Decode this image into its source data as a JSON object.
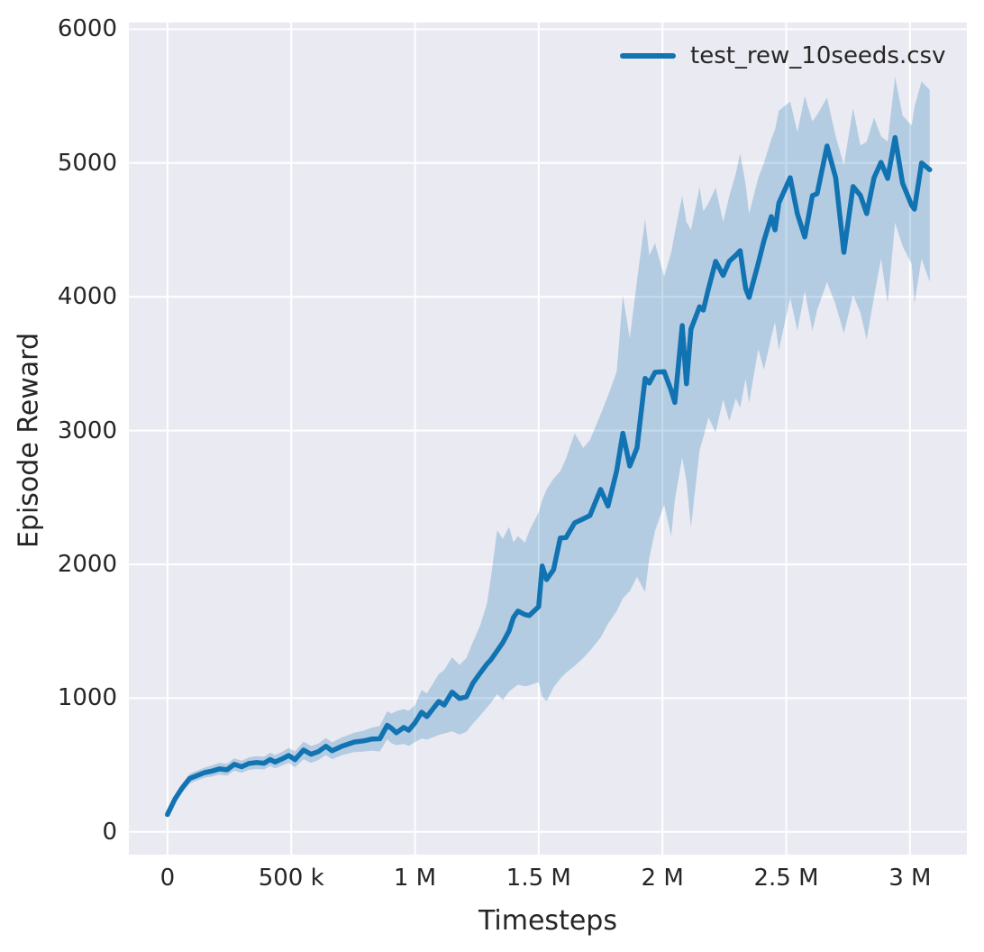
{
  "chart_data": {
    "type": "line",
    "title": "",
    "xlabel": "Timesteps",
    "ylabel": "Episode Reward",
    "grid": true,
    "xlim": [
      -156000,
      3230000
    ],
    "ylim": [
      -170,
      6050
    ],
    "x_ticks": [
      {
        "value": 0,
        "label": "0"
      },
      {
        "value": 500000,
        "label": "500 k"
      },
      {
        "value": 1000000,
        "label": "1 M"
      },
      {
        "value": 1500000,
        "label": "1.5 M"
      },
      {
        "value": 2000000,
        "label": "2 M"
      },
      {
        "value": 2500000,
        "label": "2.5 M"
      },
      {
        "value": 3000000,
        "label": "3 M"
      }
    ],
    "y_ticks": [
      {
        "value": 0,
        "label": "0"
      },
      {
        "value": 1000,
        "label": "1000"
      },
      {
        "value": 2000,
        "label": "2000"
      },
      {
        "value": 3000,
        "label": "3000"
      },
      {
        "value": 4000,
        "label": "4000"
      },
      {
        "value": 5000,
        "label": "5000"
      },
      {
        "value": 6000,
        "label": "6000"
      }
    ],
    "colors": {
      "line": "#1273b2",
      "band": "#1273b2",
      "band_opacity": 0.25,
      "plot_bg": "#eaeaf2",
      "grid": "#ffffff",
      "text": "#262626"
    },
    "legend": {
      "position": "upper right"
    },
    "series": [
      {
        "name": "test_rew_10seeds.csv",
        "note": "points are [timesteps, mean, band_low, band_high]",
        "points": [
          [
            0,
            130,
            112,
            152
          ],
          [
            30000,
            245,
            215,
            278
          ],
          [
            60000,
            330,
            295,
            362
          ],
          [
            90000,
            400,
            362,
            436
          ],
          [
            120000,
            422,
            385,
            458
          ],
          [
            150000,
            443,
            405,
            480
          ],
          [
            180000,
            455,
            415,
            497
          ],
          [
            210000,
            471,
            428,
            516
          ],
          [
            240000,
            464,
            420,
            510
          ],
          [
            270000,
            505,
            458,
            550
          ],
          [
            300000,
            487,
            442,
            532
          ],
          [
            330000,
            512,
            465,
            558
          ],
          [
            360000,
            519,
            470,
            566
          ],
          [
            390000,
            513,
            467,
            562
          ],
          [
            415000,
            541,
            492,
            592
          ],
          [
            435000,
            522,
            474,
            574
          ],
          [
            465000,
            548,
            497,
            601
          ],
          [
            490000,
            571,
            517,
            628
          ],
          [
            515000,
            540,
            483,
            601
          ],
          [
            550000,
            612,
            543,
            674
          ],
          [
            580000,
            581,
            516,
            642
          ],
          [
            610000,
            600,
            537,
            660
          ],
          [
            640000,
            640,
            574,
            702
          ],
          [
            665000,
            607,
            542,
            670
          ],
          [
            705000,
            641,
            573,
            707
          ],
          [
            755000,
            672,
            596,
            742
          ],
          [
            795000,
            681,
            601,
            758
          ],
          [
            825000,
            694,
            608,
            778
          ],
          [
            858000,
            696,
            601,
            792
          ],
          [
            888000,
            797,
            692,
            902
          ],
          [
            905000,
            775,
            662,
            884
          ],
          [
            925000,
            741,
            648,
            902
          ],
          [
            955000,
            781,
            658,
            918
          ],
          [
            975000,
            760,
            642,
            905
          ],
          [
            1000000,
            815,
            672,
            948
          ],
          [
            1027000,
            895,
            698,
            1062
          ],
          [
            1048000,
            862,
            690,
            1035
          ],
          [
            1096000,
            975,
            725,
            1180
          ],
          [
            1118000,
            948,
            735,
            1210
          ],
          [
            1150000,
            1045,
            752,
            1305
          ],
          [
            1180000,
            997,
            728,
            1248
          ],
          [
            1208000,
            1010,
            748,
            1300
          ],
          [
            1234000,
            1112,
            810,
            1420
          ],
          [
            1263000,
            1186,
            868,
            1540
          ],
          [
            1290000,
            1253,
            928,
            1700
          ],
          [
            1307000,
            1287,
            965,
            1900
          ],
          [
            1332000,
            1354,
            1030,
            2255
          ],
          [
            1355000,
            1415,
            985,
            2190
          ],
          [
            1380000,
            1502,
            1048,
            2280
          ],
          [
            1398000,
            1603,
            1075,
            2165
          ],
          [
            1416000,
            1650,
            1100,
            2210
          ],
          [
            1445000,
            1624,
            1088,
            2162
          ],
          [
            1462000,
            1617,
            1095,
            2250
          ],
          [
            1500000,
            1684,
            1120,
            2390
          ],
          [
            1514000,
            1987,
            1010,
            2480
          ],
          [
            1532000,
            1886,
            977,
            2560
          ],
          [
            1560000,
            1960,
            1080,
            2640
          ],
          [
            1587000,
            2196,
            1145,
            2695
          ],
          [
            1610000,
            2200,
            1190,
            2790
          ],
          [
            1645000,
            2310,
            1240,
            2980
          ],
          [
            1680000,
            2340,
            1300,
            2870
          ],
          [
            1707000,
            2365,
            1354,
            2930
          ],
          [
            1750000,
            2560,
            1452,
            3120
          ],
          [
            1780000,
            2435,
            1556,
            3260
          ],
          [
            1815000,
            2700,
            1650,
            3440
          ],
          [
            1840000,
            2980,
            1745,
            4010
          ],
          [
            1868000,
            2735,
            1800,
            3690
          ],
          [
            1897000,
            2870,
            1906,
            4120
          ],
          [
            1930000,
            3390,
            1792,
            4580
          ],
          [
            1947000,
            3355,
            2050,
            4310
          ],
          [
            1970000,
            3435,
            2250,
            4400
          ],
          [
            2007000,
            3440,
            2446,
            4150
          ],
          [
            2035000,
            3300,
            2210,
            4330
          ],
          [
            2050000,
            3210,
            2480,
            4480
          ],
          [
            2080000,
            3785,
            2800,
            4755
          ],
          [
            2097000,
            3350,
            2620,
            4560
          ],
          [
            2115000,
            3758,
            2277,
            4500
          ],
          [
            2150000,
            3925,
            2855,
            4820
          ],
          [
            2165000,
            3900,
            2950,
            4640
          ],
          [
            2186000,
            4062,
            3098,
            4700
          ],
          [
            2215000,
            4265,
            2985,
            4815
          ],
          [
            2245000,
            4160,
            3233,
            4560
          ],
          [
            2270000,
            4265,
            3071,
            4750
          ],
          [
            2296000,
            4310,
            3240,
            4920
          ],
          [
            2314000,
            4345,
            3170,
            5070
          ],
          [
            2336000,
            4062,
            3388,
            4840
          ],
          [
            2350000,
            3995,
            3206,
            4620
          ],
          [
            2387000,
            4250,
            3610,
            4890
          ],
          [
            2410000,
            4420,
            3455,
            5000
          ],
          [
            2440000,
            4600,
            3700,
            5180
          ],
          [
            2455000,
            4500,
            3812,
            5250
          ],
          [
            2470000,
            4700,
            3600,
            5390
          ],
          [
            2516000,
            4890,
            3994,
            5460
          ],
          [
            2545000,
            4620,
            3745,
            5230
          ],
          [
            2575000,
            4447,
            4041,
            5500
          ],
          [
            2606000,
            4757,
            3745,
            5310
          ],
          [
            2625000,
            4770,
            3900,
            5360
          ],
          [
            2665000,
            5127,
            4110,
            5490
          ],
          [
            2700000,
            4890,
            3940,
            5200
          ],
          [
            2733000,
            4332,
            3725,
            4985
          ],
          [
            2770000,
            4824,
            4015,
            5410
          ],
          [
            2800000,
            4757,
            3880,
            5130
          ],
          [
            2825000,
            4622,
            3680,
            5160
          ],
          [
            2855000,
            4890,
            4000,
            5340
          ],
          [
            2883000,
            5005,
            4285,
            5200
          ],
          [
            2910000,
            4885,
            3950,
            5160
          ],
          [
            2940000,
            5190,
            4554,
            5645
          ],
          [
            2970000,
            4850,
            4379,
            5355
          ],
          [
            3007000,
            4682,
            4244,
            5280
          ],
          [
            3018000,
            4655,
            3948,
            5420
          ],
          [
            3047000,
            5000,
            4285,
            5610
          ],
          [
            3080000,
            4950,
            4110,
            5545
          ]
        ]
      }
    ]
  }
}
